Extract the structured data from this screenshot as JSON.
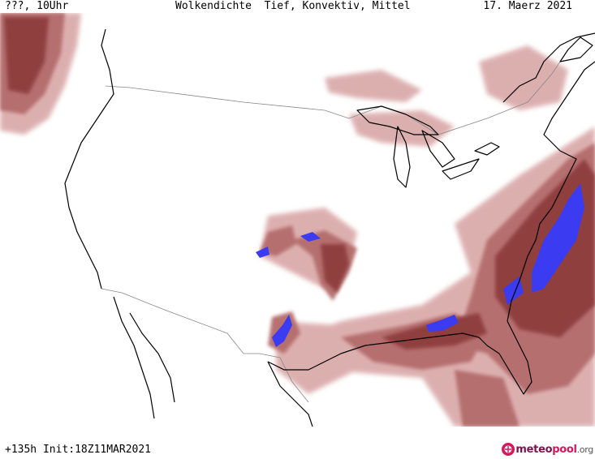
{
  "header": {
    "left": "???, 10Uhr",
    "center": "Wolkendichte  Tief, Konvektiv, Mittel",
    "right": "17. Maerz 2021"
  },
  "footer": {
    "run": "+135h Init:18Z11MAR2021"
  },
  "logo": {
    "part1": "meteo",
    "part2": "pool",
    "part3": ".org"
  },
  "colors": {
    "cloud_dark": "#9a4a4a",
    "cloud_mid": "#b87070",
    "cloud_light": "#d4a0a0",
    "convective": "#3a3af0",
    "coast": "#000000",
    "border": "#888888"
  }
}
